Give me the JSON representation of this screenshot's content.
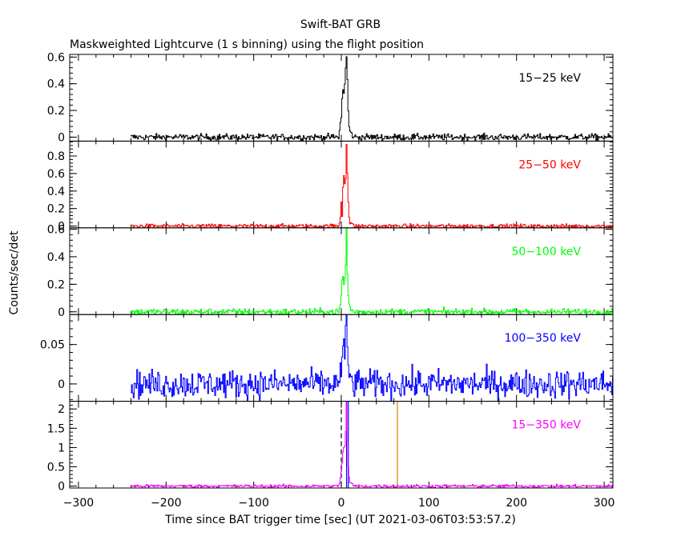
{
  "header": {
    "title": "Swift-BAT GRB",
    "subtitle": "Maskweighted Lightcurve (1 s binning) using the flight position"
  },
  "xlabel": "Time since BAT trigger time [sec] (UT 2021-03-06T03:53:57.2)",
  "ylabel": "Counts/sec/det",
  "chart_data": {
    "type": "line",
    "xlim": [
      -310,
      310
    ],
    "x_ticks": [
      -300,
      -200,
      -100,
      0,
      100,
      200,
      300
    ],
    "x_tick_labels": [
      "−300",
      "−200",
      "−100",
      "0",
      "100",
      "200",
      "300"
    ],
    "data_range": [
      -240,
      310
    ],
    "grid": false,
    "legend": "panel labels top-right",
    "panels": [
      {
        "name": "15–25 keV",
        "label": "15−25 keV",
        "color": "#000000",
        "ylim": [
          -0.03,
          0.62
        ],
        "yticks": [
          0,
          0.2,
          0.4,
          0.6
        ],
        "ytick_labels": [
          "0",
          "0.2",
          "0.4",
          "0.6"
        ],
        "noise": 0.012,
        "burst": [
          [
            -3,
            0.0
          ],
          [
            -1,
            0.1
          ],
          [
            0,
            0.15
          ],
          [
            1,
            0.28
          ],
          [
            2,
            0.37
          ],
          [
            3,
            0.33
          ],
          [
            4,
            0.39
          ],
          [
            5,
            0.52
          ],
          [
            6,
            0.6
          ],
          [
            7,
            0.42
          ],
          [
            8,
            0.2
          ],
          [
            9,
            0.08
          ],
          [
            10,
            0.04
          ],
          [
            12,
            0.02
          ],
          [
            15,
            0.0
          ]
        ]
      },
      {
        "name": "25–50 keV",
        "label": "25−50 keV",
        "color": "#ff0000",
        "ylim": [
          -0.02,
          0.97
        ],
        "yticks": [
          0,
          0.2,
          0.4,
          0.6,
          0.8
        ],
        "ytick_labels": [
          "0",
          "0.2",
          "0.4",
          "0.6",
          "0.8"
        ],
        "noise": 0.012,
        "burst": [
          [
            -3,
            0.0
          ],
          [
            -1,
            0.1
          ],
          [
            0,
            0.28
          ],
          [
            1,
            0.12
          ],
          [
            2,
            0.45
          ],
          [
            3,
            0.58
          ],
          [
            4,
            0.5
          ],
          [
            5,
            0.55
          ],
          [
            6,
            0.95
          ],
          [
            7,
            0.6
          ],
          [
            8,
            0.28
          ],
          [
            9,
            0.1
          ],
          [
            10,
            0.04
          ],
          [
            12,
            0.02
          ],
          [
            15,
            0.0
          ]
        ]
      },
      {
        "name": "50–100 keV",
        "label": "50−100 keV",
        "color": "#00ff00",
        "ylim": [
          -0.02,
          0.61
        ],
        "yticks": [
          0,
          0.2,
          0.4,
          0.6
        ],
        "ytick_labels": [
          "0",
          "0.2",
          "0.4",
          "0.6"
        ],
        "noise": 0.012,
        "burst": [
          [
            -3,
            0.0
          ],
          [
            -1,
            0.05
          ],
          [
            0,
            0.12
          ],
          [
            1,
            0.22
          ],
          [
            2,
            0.26
          ],
          [
            3,
            0.2
          ],
          [
            4,
            0.24
          ],
          [
            5,
            0.34
          ],
          [
            6,
            0.6
          ],
          [
            7,
            0.28
          ],
          [
            8,
            0.12
          ],
          [
            9,
            0.05
          ],
          [
            10,
            0.03
          ],
          [
            12,
            0.01
          ],
          [
            15,
            0.0
          ]
        ]
      },
      {
        "name": "100–350 keV",
        "label": "100−350 keV",
        "color": "#0000ff",
        "ylim": [
          -0.022,
          0.088
        ],
        "yticks": [
          0,
          0.05
        ],
        "ytick_labels": [
          "0",
          "0.05"
        ],
        "noise": 0.009,
        "burst": [
          [
            -5,
            0.0
          ],
          [
            -2,
            0.005
          ],
          [
            0,
            0.02
          ],
          [
            2,
            0.045
          ],
          [
            4,
            0.035
          ],
          [
            5,
            0.06
          ],
          [
            6,
            0.085
          ],
          [
            7,
            0.05
          ],
          [
            8,
            0.02
          ],
          [
            10,
            0.008
          ],
          [
            14,
            0.0
          ]
        ]
      },
      {
        "name": "15–350 keV",
        "label": "15−350 keV",
        "color": "#ff00ff",
        "ylim": [
          -0.05,
          2.2
        ],
        "yticks": [
          0,
          0.5,
          1,
          1.5,
          2
        ],
        "ytick_labels": [
          "0",
          "0.5",
          "1",
          "1.5",
          "2"
        ],
        "noise": 0.02,
        "burst": [
          [
            -3,
            0.0
          ],
          [
            -1,
            0.2
          ],
          [
            0,
            0.4
          ],
          [
            1,
            0.6
          ],
          [
            2,
            0.9
          ],
          [
            3,
            1.0
          ],
          [
            4,
            1.05
          ],
          [
            5,
            1.4
          ],
          [
            6,
            2.15
          ],
          [
            7,
            1.2
          ],
          [
            8,
            0.5
          ],
          [
            9,
            0.2
          ],
          [
            10,
            0.1
          ],
          [
            12,
            0.05
          ],
          [
            15,
            0.02
          ]
        ],
        "markers": [
          {
            "x": 0,
            "color": "#000000",
            "dash": true
          },
          {
            "x": 6,
            "color": "#0000ff",
            "dash": false
          },
          {
            "x": 8,
            "color": "#0000ff",
            "dash": false
          },
          {
            "x": 64,
            "color": "#cc8800",
            "dash": false
          }
        ]
      }
    ]
  }
}
